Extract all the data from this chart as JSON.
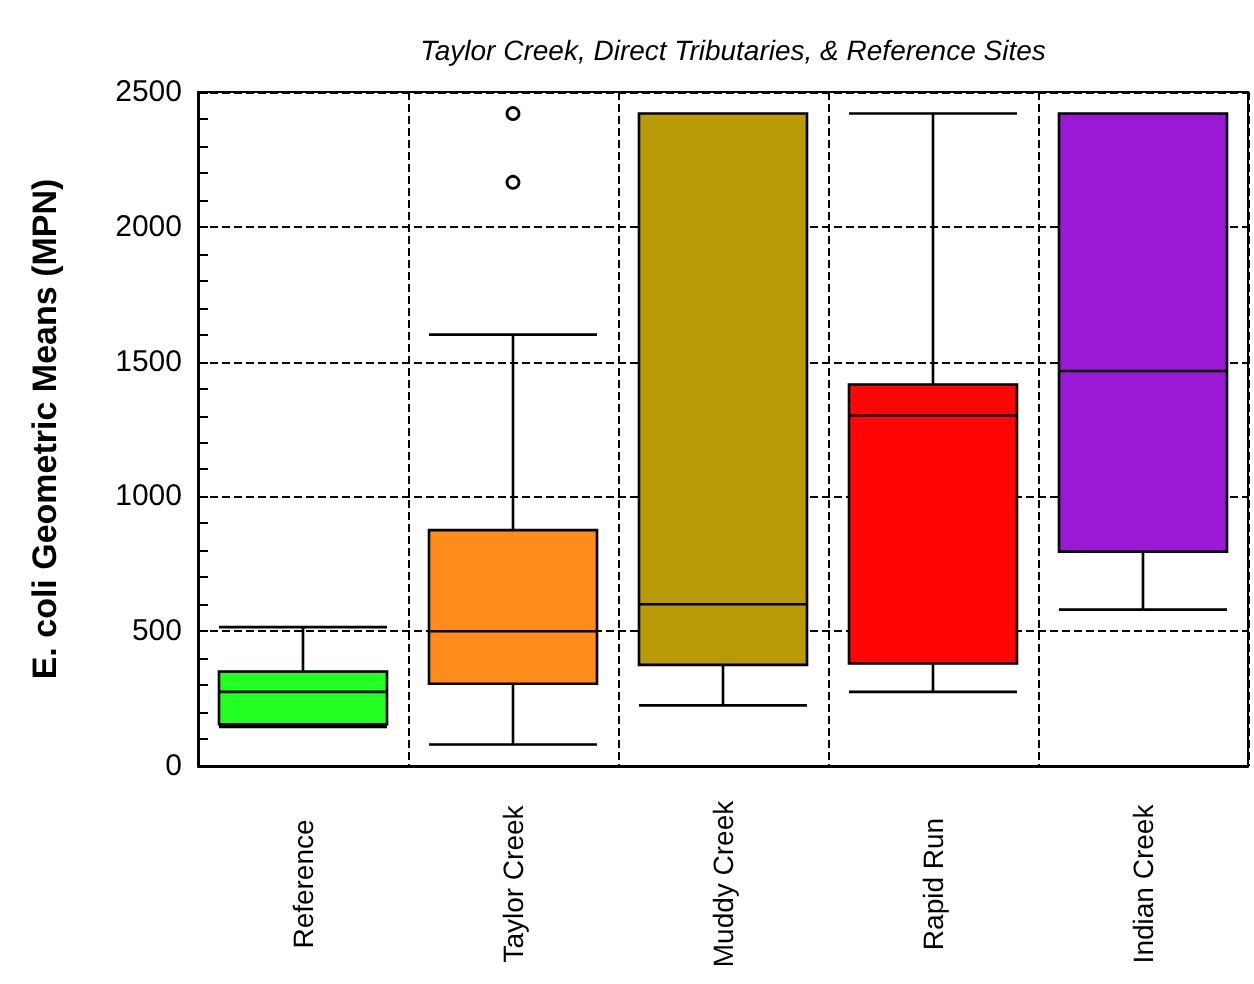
{
  "chart_data": {
    "type": "box",
    "title": "Taylor Creek, Direct Tributaries, & Reference Sites",
    "ylabel": "E. coli Geometric Means (MPN)",
    "categories": [
      "Reference",
      "Taylor Creek",
      "Muddy Creek",
      "Rapid Run",
      "Indian Creek"
    ],
    "colors": [
      "#22ff22",
      "#ff8c1a",
      "#bb9a08",
      "#ff0505",
      "#9a19d4"
    ],
    "boxes": [
      {
        "low": 145,
        "q1": 155,
        "median": 275,
        "q3": 350,
        "high": 515
      },
      {
        "low": 80,
        "q1": 305,
        "median": 500,
        "q3": 875,
        "high": 1600,
        "outliers": [
          2420,
          2165
        ]
      },
      {
        "low": 225,
        "q1": 375,
        "median": 600,
        "q3": 2420,
        "high": 2420
      },
      {
        "low": 275,
        "q1": 380,
        "median": 1300,
        "q3": 1415,
        "high": 2420
      },
      {
        "low": 580,
        "q1": 795,
        "median": 1465,
        "q3": 2420,
        "high": 2420
      }
    ],
    "ylim": [
      0,
      2500
    ],
    "yticks": [
      0,
      {
        "value": 100,
        "label": null
      },
      {
        "value": 200,
        "label": null
      },
      {
        "value": 300,
        "label": null
      },
      {
        "value": 400,
        "label": null
      },
      500,
      {
        "value": 600,
        "label": null
      },
      {
        "value": 700,
        "label": null
      },
      {
        "value": 800,
        "label": null
      },
      {
        "value": 900,
        "label": null
      },
      1000,
      {
        "value": 1100,
        "label": null
      },
      {
        "value": 1200,
        "label": null
      },
      {
        "value": 1300,
        "label": null
      },
      {
        "value": 1400,
        "label": null
      },
      1500,
      {
        "value": 1600,
        "label": null
      },
      {
        "value": 1700,
        "label": null
      },
      {
        "value": 1800,
        "label": null
      },
      {
        "value": 1900,
        "label": null
      },
      2000,
      {
        "value": 2100,
        "label": null
      },
      {
        "value": 2200,
        "label": null
      },
      {
        "value": 2300,
        "label": null
      },
      {
        "value": 2400,
        "label": null
      },
      2500
    ],
    "grid": true
  }
}
